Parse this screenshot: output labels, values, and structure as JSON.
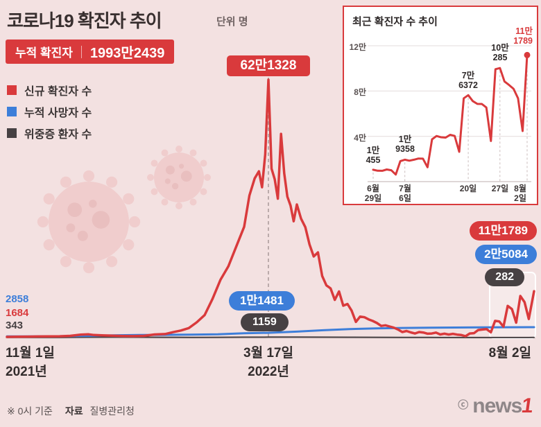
{
  "colors": {
    "red": "#d93a3c",
    "blue": "#3d7ed9",
    "dark": "#474143",
    "background": "#f3e1e1"
  },
  "header": {
    "title": "코로나19 확진자 추이",
    "unit": "단위 명",
    "cumulative_label": "누적 확진자",
    "cumulative_value": "1993만2439"
  },
  "legend": {
    "items": [
      {
        "label": "신규 확진자 수",
        "color": "#d93a3c"
      },
      {
        "label": "누적 사망자 수",
        "color": "#3d7ed9"
      },
      {
        "label": "위중증 환자 수",
        "color": "#474143"
      }
    ]
  },
  "main_chart": {
    "peak_badge": "62만1328",
    "deaths_peak_badge": "1만1481",
    "severe_peak_badge": "1159",
    "end_new_badge": "11만1789",
    "end_deaths_badge": "2만5084",
    "end_severe_badge": "282",
    "start_deaths": "2858",
    "start_new": "1684",
    "start_severe": "343",
    "x_axis": {
      "start_date": "11월 1일",
      "start_year": "2021년",
      "peak_date": "3월 17일",
      "peak_year": "2022년",
      "end_date": "8월 2일"
    }
  },
  "inset": {
    "title": "최근 확진자 수 추이",
    "y_ticks": [
      "12만",
      "8만",
      "4만"
    ],
    "value_labels": [
      [
        "1만",
        "455"
      ],
      [
        "1만",
        "9358"
      ],
      [
        "7만",
        "6372"
      ],
      [
        "10만",
        "285"
      ],
      [
        "11만",
        "1789"
      ]
    ],
    "x_labels": [
      [
        "6월",
        "29일"
      ],
      [
        "7월",
        "6일"
      ],
      [
        "20일"
      ],
      [
        "27일"
      ],
      [
        "8월",
        "2일"
      ]
    ]
  },
  "footer": {
    "note_prefix": "※ 0시 기준",
    "source_label": "자료",
    "source_value": "질병관리청",
    "copyright": "ⓒ",
    "logo_gray": "news",
    "logo_red": "1"
  },
  "chart_data": [
    {
      "type": "line",
      "title": "코로나19 확진자 추이",
      "unit": "명",
      "x_range": [
        "2021-11-01",
        "2022-08-02"
      ],
      "x_encoding": "fraction of date range (0 = 2021-11-01, 1 = 2022-08-02)",
      "ylim": [
        0,
        621328
      ],
      "legend_position": "top-left",
      "series": [
        {
          "name": "신규 확진자 수",
          "color": "#d93a3c",
          "points": [
            [
              0,
              1684
            ],
            [
              0.02,
              2111
            ],
            [
              0.04,
              2308
            ],
            [
              0.06,
              2633
            ],
            [
              0.08,
              2899
            ],
            [
              0.1,
              3212
            ],
            [
              0.12,
              4116
            ],
            [
              0.14,
              7175
            ],
            [
              0.155,
              7850
            ],
            [
              0.165,
              6233
            ],
            [
              0.18,
              5318
            ],
            [
              0.2,
              4542
            ],
            [
              0.22,
              3833
            ],
            [
              0.24,
              3507
            ],
            [
              0.26,
              4207
            ],
            [
              0.28,
              7513
            ],
            [
              0.3,
              8571
            ],
            [
              0.315,
              13012
            ],
            [
              0.33,
              17086
            ],
            [
              0.345,
              22907
            ],
            [
              0.36,
              36719
            ],
            [
              0.375,
              54122
            ],
            [
              0.39,
              93135
            ],
            [
              0.405,
              138993
            ],
            [
              0.42,
              171452
            ],
            [
              0.435,
              219241
            ],
            [
              0.45,
              266853
            ],
            [
              0.46,
              342446
            ],
            [
              0.47,
              383664
            ],
            [
              0.478,
              400741
            ],
            [
              0.484,
              362338
            ],
            [
              0.49,
              441423
            ],
            [
              0.496,
              621328
            ],
            [
              0.502,
              407017
            ],
            [
              0.508,
              381454
            ],
            [
              0.514,
              334708
            ],
            [
              0.52,
              490881
            ],
            [
              0.526,
              395598
            ],
            [
              0.532,
              339514
            ],
            [
              0.538,
              318130
            ],
            [
              0.544,
              280273
            ],
            [
              0.55,
              320743
            ],
            [
              0.558,
              286294
            ],
            [
              0.566,
              266135
            ],
            [
              0.574,
              224820
            ],
            [
              0.582,
              195419
            ],
            [
              0.59,
              205333
            ],
            [
              0.598,
              148443
            ],
            [
              0.606,
              125846
            ],
            [
              0.614,
              118504
            ],
            [
              0.622,
              90928
            ],
            [
              0.63,
              111319
            ],
            [
              0.638,
              76787
            ],
            [
              0.646,
              81058
            ],
            [
              0.654,
              64725
            ],
            [
              0.662,
              37771
            ],
            [
              0.67,
              50568
            ],
            [
              0.678,
              49064
            ],
            [
              0.686,
              43925
            ],
            [
              0.694,
              40064
            ],
            [
              0.702,
              35117
            ],
            [
              0.71,
              28130
            ],
            [
              0.718,
              29582
            ],
            [
              0.726,
              26714
            ],
            [
              0.734,
              23956
            ],
            [
              0.742,
              19298
            ],
            [
              0.75,
              13296
            ],
            [
              0.758,
              15798
            ],
            [
              0.766,
              12542
            ],
            [
              0.774,
              9896
            ],
            [
              0.782,
              13358
            ],
            [
              0.79,
              12161
            ],
            [
              0.798,
              9310
            ],
            [
              0.806,
              9835
            ],
            [
              0.814,
              12048
            ],
            [
              0.822,
              7491
            ],
            [
              0.83,
              9435
            ],
            [
              0.838,
              7382
            ],
            [
              0.846,
              8992
            ],
            [
              0.854,
              7227
            ],
            [
              0.862,
              6246
            ],
            [
              0.87,
              3423
            ],
            [
              0.878,
              9896
            ],
            [
              0.886,
              10715
            ],
            [
              0.894,
              18147
            ],
            [
              0.902,
              19358
            ],
            [
              0.91,
              20410
            ],
            [
              0.918,
              12693
            ],
            [
              0.926,
              40266
            ],
            [
              0.934,
              38882
            ],
            [
              0.942,
              26299
            ],
            [
              0.95,
              76372
            ],
            [
              0.958,
              68632
            ],
            [
              0.966,
              35883
            ],
            [
              0.974,
              100285
            ],
            [
              0.982,
              85320
            ],
            [
              0.99,
              44689
            ],
            [
              1,
              111789
            ]
          ]
        },
        {
          "name": "누적 사망자 수",
          "color": "#3d7ed9",
          "points": [
            [
              0,
              2858
            ],
            [
              0.05,
              3012
            ],
            [
              0.1,
              3298
            ],
            [
              0.15,
              4130
            ],
            [
              0.2,
              5382
            ],
            [
              0.25,
              6114
            ],
            [
              0.3,
              6588
            ],
            [
              0.35,
              7202
            ],
            [
              0.4,
              8058
            ],
            [
              0.45,
              10595
            ],
            [
              0.496,
              11481
            ],
            [
              0.55,
              14294
            ],
            [
              0.6,
              17662
            ],
            [
              0.65,
              20616
            ],
            [
              0.7,
              22133
            ],
            [
              0.75,
              23206
            ],
            [
              0.8,
              23771
            ],
            [
              0.85,
              24258
            ],
            [
              0.9,
              24576
            ],
            [
              0.95,
              24890
            ],
            [
              1,
              25084
            ]
          ]
        },
        {
          "name": "위중증 환자 수",
          "color": "#474143",
          "points": [
            [
              0,
              343
            ],
            [
              0.1,
              473
            ],
            [
              0.15,
              964
            ],
            [
              0.2,
              1151
            ],
            [
              0.25,
              932
            ],
            [
              0.3,
              688
            ],
            [
              0.35,
              512
            ],
            [
              0.4,
              715
            ],
            [
              0.45,
              1049
            ],
            [
              0.496,
              1159
            ],
            [
              0.55,
              1315
            ],
            [
              0.6,
              1014
            ],
            [
              0.65,
              846
            ],
            [
              0.7,
              611
            ],
            [
              0.75,
              440
            ],
            [
              0.8,
              251
            ],
            [
              0.85,
              144
            ],
            [
              0.9,
              96
            ],
            [
              0.95,
              177
            ],
            [
              1,
              282
            ]
          ]
        }
      ],
      "annotations": [
        {
          "x": "2022-03-17",
          "series": "신규 확진자 수",
          "value": 621328,
          "label": "62만1328"
        },
        {
          "x": "2022-03-17",
          "series": "누적 사망자 수",
          "value": 11481,
          "label": "1만1481"
        },
        {
          "x": "2022-03-17",
          "series": "위중증 환자 수",
          "value": 1159,
          "label": "1159"
        },
        {
          "x": "2022-08-02",
          "series": "신규 확진자 수",
          "value": 111789,
          "label": "11만1789"
        },
        {
          "x": "2022-08-02",
          "series": "누적 사망자 수",
          "value": 25084,
          "label": "2만5084"
        },
        {
          "x": "2022-08-02",
          "series": "위중증 환자 수",
          "value": 282,
          "label": "282"
        },
        {
          "x": "2021-11-01",
          "series": "누적 사망자 수",
          "value": 2858,
          "label": "2858"
        },
        {
          "x": "2021-11-01",
          "series": "신규 확진자 수",
          "value": 1684,
          "label": "1684"
        },
        {
          "x": "2021-11-01",
          "series": "위중증 환자 수",
          "value": 343,
          "label": "343"
        }
      ]
    },
    {
      "type": "line",
      "title": "최근 확진자 수 추이",
      "unit": "명",
      "x_range": [
        "6월 29일",
        "8월 2일"
      ],
      "x_encoding": "day offset from 6월 29일",
      "ylim": [
        0,
        130000
      ],
      "y_ticks": [
        40000,
        80000,
        120000
      ],
      "y_tick_labels": [
        "4만",
        "8만",
        "12만"
      ],
      "x_tick_days": [
        0,
        7,
        21,
        28,
        34
      ],
      "x_tick_labels": [
        "6월 29일",
        "7월 6일",
        "20일",
        "27일",
        "8월 2일"
      ],
      "points": [
        [
          0,
          10455
        ],
        [
          1,
          9595
        ],
        [
          2,
          9528
        ],
        [
          3,
          10715
        ],
        [
          4,
          10059
        ],
        [
          5,
          6253
        ],
        [
          6,
          18147
        ],
        [
          7,
          19358
        ],
        [
          8,
          18511
        ],
        [
          9,
          19323
        ],
        [
          10,
          20410
        ],
        [
          11,
          20271
        ],
        [
          12,
          12693
        ],
        [
          13,
          37360
        ],
        [
          14,
          40266
        ],
        [
          15,
          39196
        ],
        [
          16,
          38882
        ],
        [
          17,
          41310
        ],
        [
          18,
          40342
        ],
        [
          19,
          26299
        ],
        [
          20,
          73582
        ],
        [
          21,
          76372
        ],
        [
          22,
          71170
        ],
        [
          23,
          68632
        ],
        [
          24,
          68551
        ],
        [
          25,
          65433
        ],
        [
          26,
          35883
        ],
        [
          27,
          99327
        ],
        [
          28,
          100285
        ],
        [
          29,
          88384
        ],
        [
          30,
          85320
        ],
        [
          31,
          82002
        ],
        [
          32,
          73589
        ],
        [
          33,
          44689
        ],
        [
          34,
          111789
        ]
      ],
      "labeled_points": [
        {
          "day": 0,
          "value": 10455,
          "label": "1만 455"
        },
        {
          "day": 7,
          "value": 19358,
          "label": "1만 9358"
        },
        {
          "day": 21,
          "value": 76372,
          "label": "7만 6372"
        },
        {
          "day": 28,
          "value": 100285,
          "label": "10만 285"
        },
        {
          "day": 34,
          "value": 111789,
          "label": "11만 1789"
        }
      ]
    }
  ]
}
